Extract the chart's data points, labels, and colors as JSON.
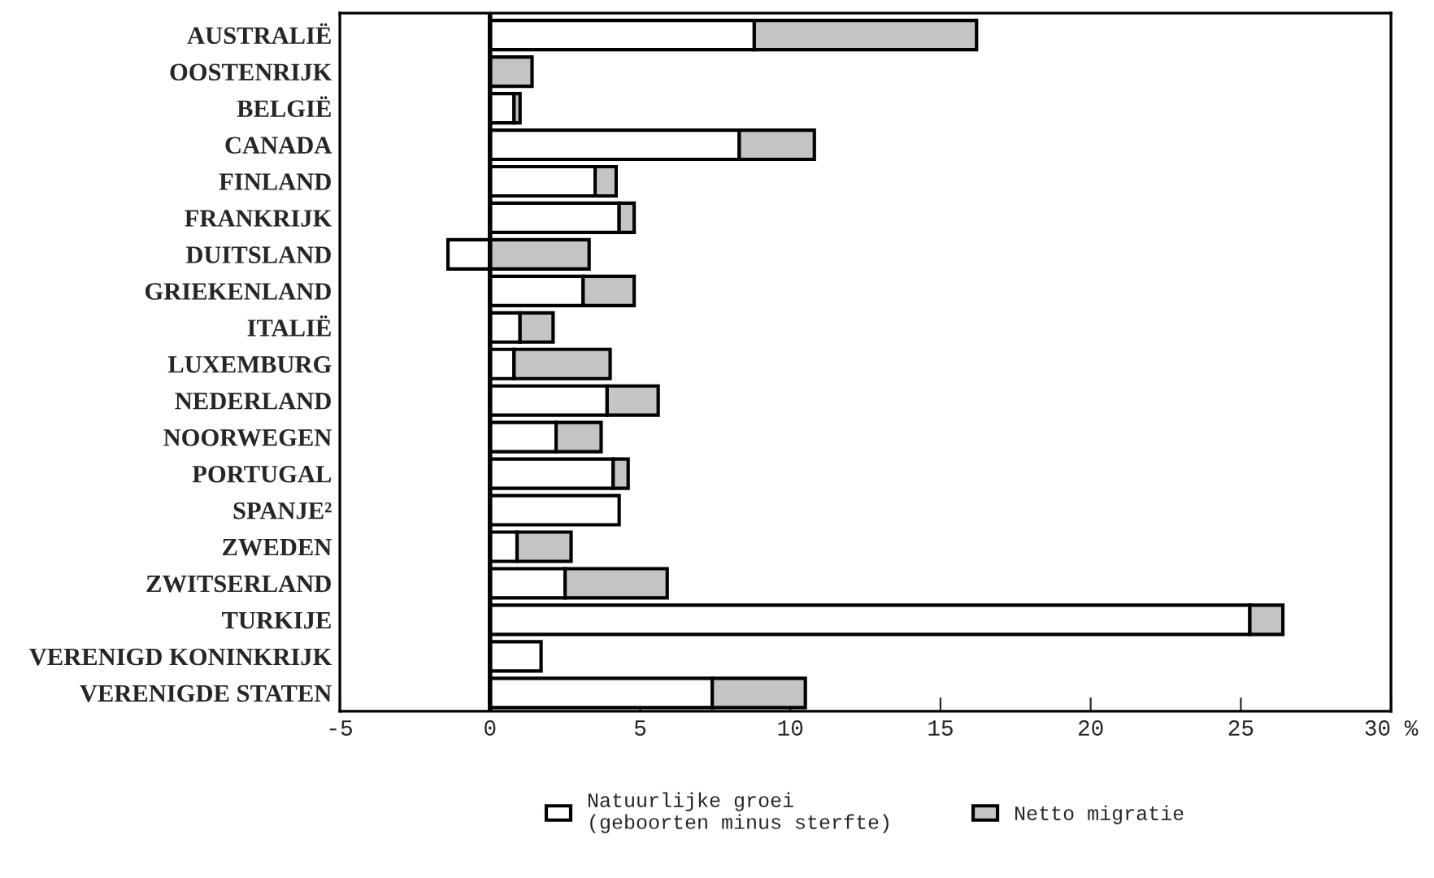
{
  "chart_data": {
    "type": "bar",
    "orientation": "horizontal",
    "stacked": true,
    "categories": [
      "AUSTRALIË",
      "OOSTENRIJK",
      "BELGIË",
      "CANADA",
      "FINLAND",
      "FRANKRIJK",
      "DUITSLAND",
      "GRIEKENLAND",
      "ITALIË",
      "LUXEMBURG",
      "NEDERLAND",
      "NOORWEGEN",
      "PORTUGAL",
      "SPANJE²",
      "ZWEDEN",
      "ZWITSERLAND",
      "TURKIJE",
      "VERENIGD KONINKRIJK",
      "VERENIGDE STATEN"
    ],
    "series": [
      {
        "name": "Natuurlijke groei\n(geboorten minus sterfte)",
        "color": "#ffffff",
        "values": [
          8.8,
          null,
          0.8,
          8.3,
          3.5,
          4.3,
          -1.4,
          3.1,
          1.0,
          0.8,
          3.9,
          2.2,
          4.1,
          4.3,
          0.9,
          2.5,
          25.3,
          1.7,
          7.4
        ]
      },
      {
        "name": "Netto migratie",
        "color": "#c4c4c4",
        "values": [
          7.4,
          1.4,
          0.2,
          2.5,
          0.7,
          0.5,
          3.3,
          1.7,
          1.1,
          3.2,
          1.7,
          1.5,
          0.5,
          null,
          1.8,
          3.4,
          1.1,
          null,
          3.1
        ]
      }
    ],
    "xlim": [
      -5,
      30
    ],
    "xticks": [
      -5,
      0,
      5,
      10,
      15,
      20,
      25,
      {
        "value": 30,
        "label": "30 %"
      }
    ],
    "ref_lines": [
      {
        "axis": "x",
        "value": 0
      }
    ],
    "grid": false,
    "legend": "bottom"
  }
}
